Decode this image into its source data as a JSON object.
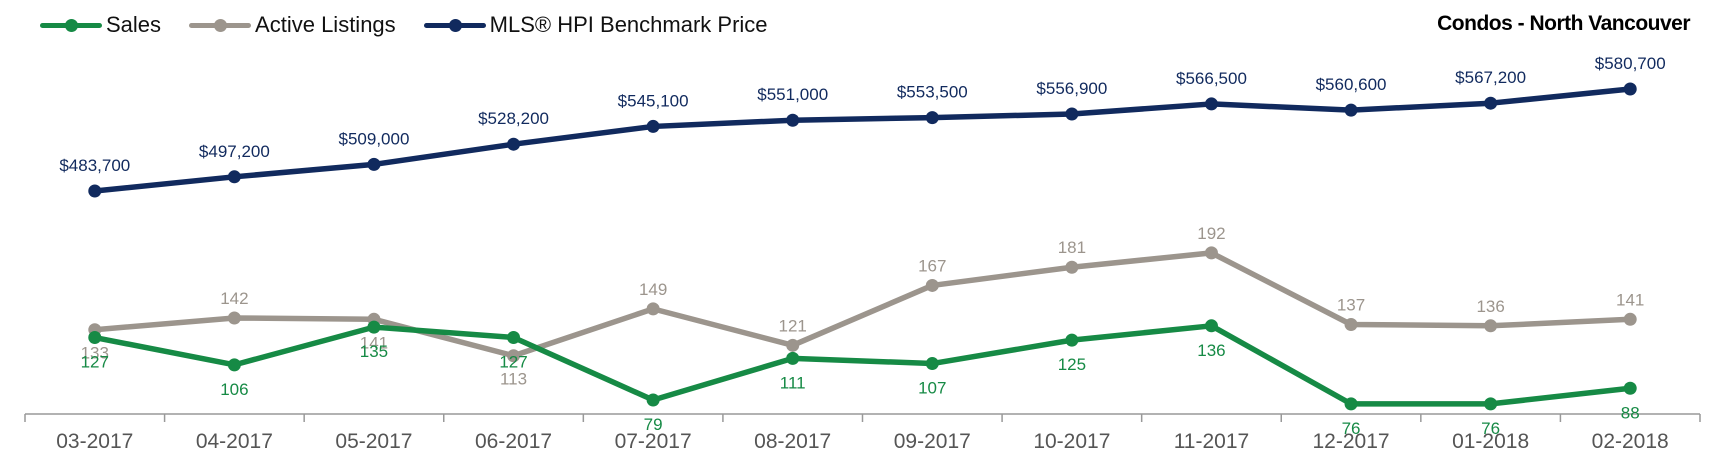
{
  "title": "Condos - North Vancouver",
  "colors": {
    "sales": "#168a45",
    "listings": "#9c958d",
    "hpi": "#112a5e",
    "axis": "#999999",
    "tick_text": "#555555"
  },
  "chart_data": {
    "type": "line",
    "title": "Condos - North Vancouver",
    "categories": [
      "03-2017",
      "04-2017",
      "05-2017",
      "06-2017",
      "07-2017",
      "08-2017",
      "09-2017",
      "10-2017",
      "11-2017",
      "12-2017",
      "01-2018",
      "02-2018"
    ],
    "legend_position": "top-left",
    "grid": false,
    "series": [
      {
        "key": "sales",
        "name": "Sales",
        "values": [
          127,
          106,
          135,
          127,
          79,
          111,
          107,
          125,
          136,
          76,
          76,
          88
        ]
      },
      {
        "key": "listings",
        "name": "Active Listings",
        "values": [
          133,
          142,
          141,
          113,
          149,
          121,
          167,
          181,
          192,
          137,
          136,
          141
        ]
      },
      {
        "key": "hpi",
        "name": "MLS® HPI Benchmark Price",
        "values": [
          483700,
          497200,
          509000,
          528200,
          545100,
          551000,
          553500,
          556900,
          566500,
          560600,
          567200,
          580700
        ],
        "labels": [
          "$483,700",
          "$497,200",
          "$509,000",
          "$528,200",
          "$545,100",
          "$551,000",
          "$553,500",
          "$556,900",
          "$566,500",
          "$560,600",
          "$567,200",
          "$580,700"
        ]
      }
    ]
  }
}
